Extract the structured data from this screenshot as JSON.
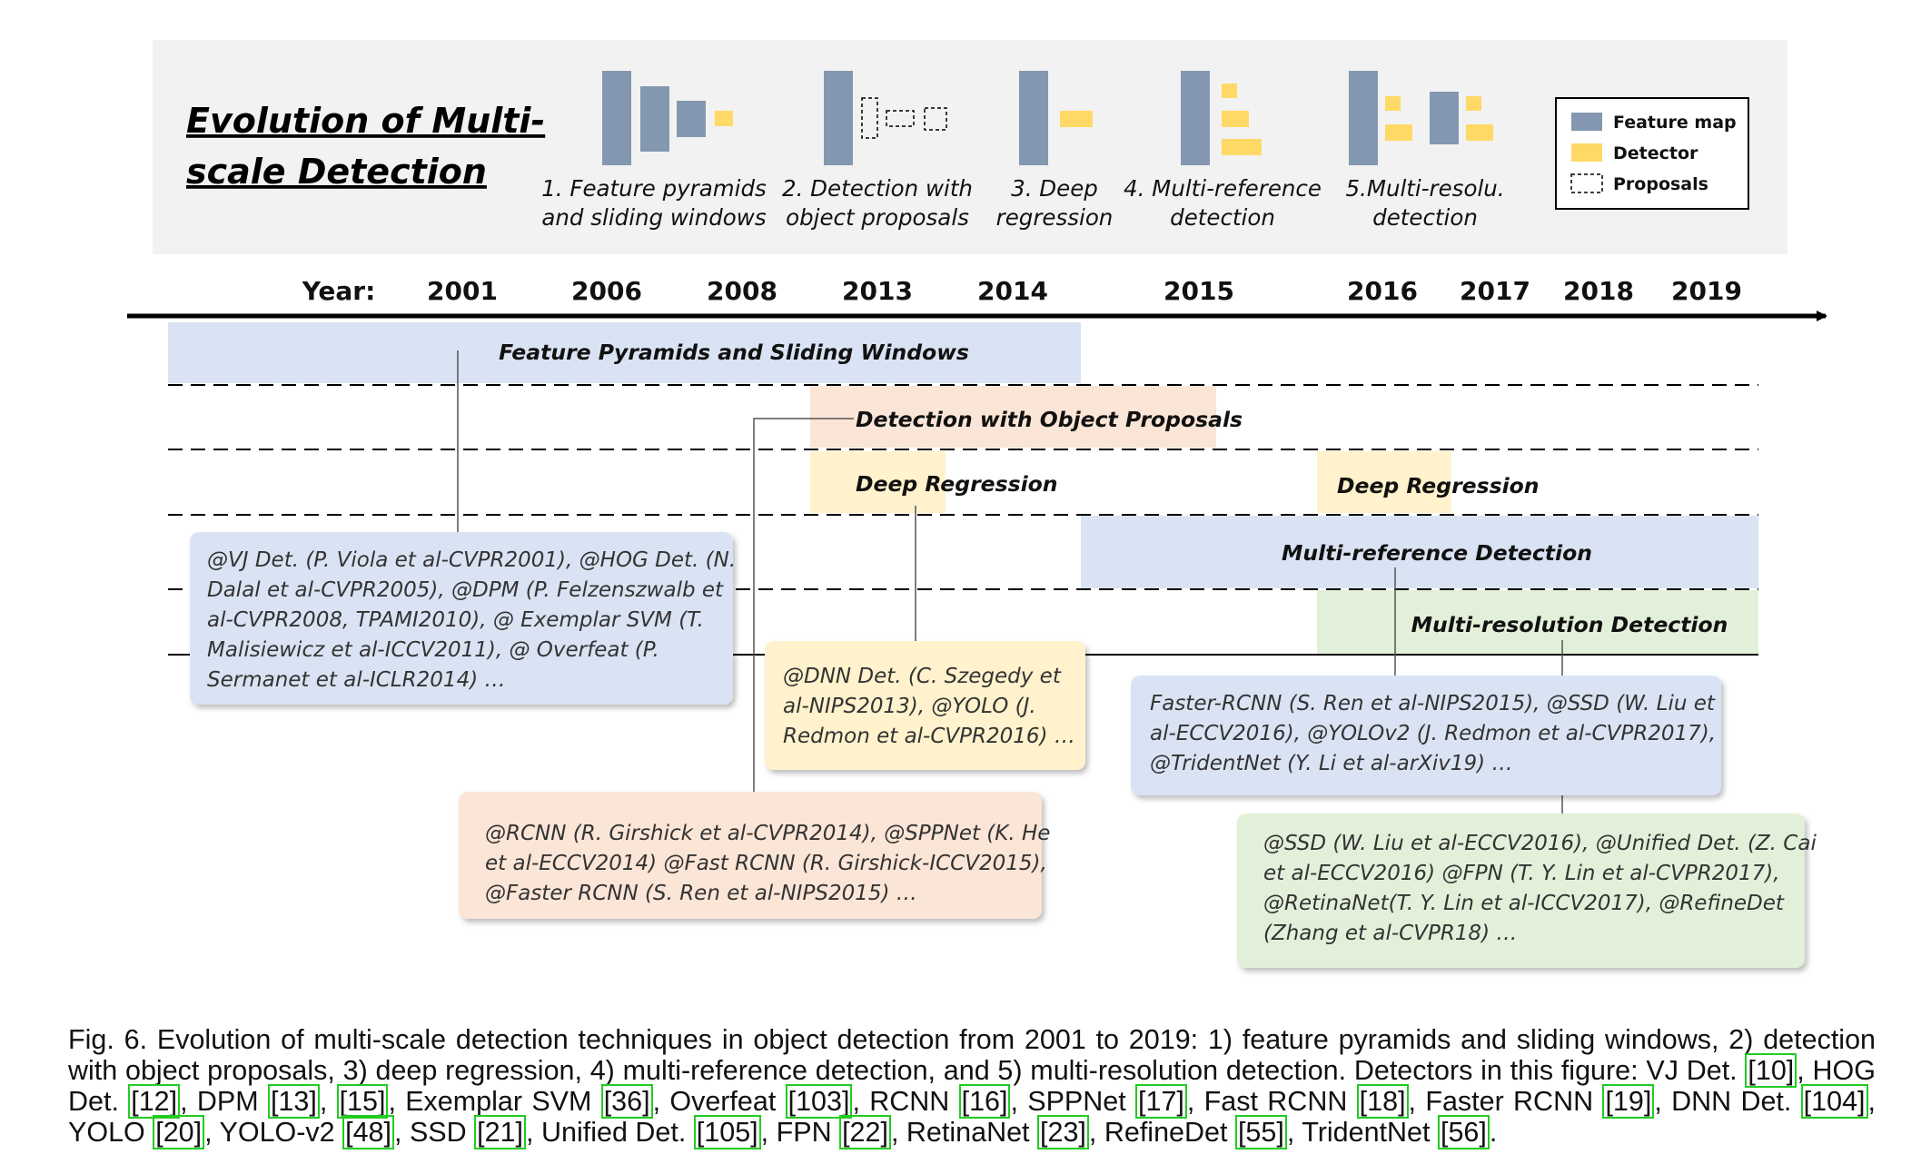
{
  "legend_panel": {
    "title_line1": "Evolution of Multi-",
    "title_line2": "scale Detection",
    "methods": [
      {
        "line1": "1. Feature pyramids",
        "line2": "and sliding windows"
      },
      {
        "line1": "2. Detection with",
        "line2": "object proposals"
      },
      {
        "line1": "3. Deep",
        "line2": "regression"
      },
      {
        "line1": "4. Multi-reference",
        "line2": "detection"
      },
      {
        "line1": "5.Multi-resolu.",
        "line2": "detection"
      }
    ],
    "key": [
      {
        "label": "Feature map",
        "color": "#8497b0"
      },
      {
        "label": "Detector",
        "color": "#ffd966"
      },
      {
        "label": "Proposals",
        "color": "#ffffff"
      }
    ]
  },
  "timeline": {
    "year_label": "Year:",
    "years": [
      "2001",
      "2006",
      "2008",
      "2013",
      "2014",
      "2015",
      "2016",
      "2017",
      "2018",
      "2019"
    ]
  },
  "bands": {
    "feature_pyramids": "Feature Pyramids and Sliding Windows",
    "object_proposals": "Detection with Object Proposals",
    "deep_regression_1": "Deep Regression",
    "deep_regression_2": "Deep Regression",
    "multi_reference": "Multi-reference Detection",
    "multi_resolution": "Multi-resolution Detection"
  },
  "notes": {
    "sliding": [
      "@VJ Det. (P. Viola et al-CVPR2001), @HOG Det. (N.",
      "Dalal et al-CVPR2005), @DPM (P. Felzenszwalb et",
      "al-CVPR2008, TPAMI2010), @ Exemplar SVM (T.",
      "Malisiewicz et al-ICCV2011), @ Overfeat (P.",
      "Sermanet et al-ICLR2014) …"
    ],
    "proposals": [
      "@RCNN (R. Girshick et al-CVPR2014), @SPPNet (K. He",
      "et al-ECCV2014) @Fast RCNN (R. Girshick-ICCV2015),",
      "@Faster RCNN (S. Ren et al-NIPS2015) …"
    ],
    "regression": [
      "@DNN Det. (C. Szegedy et",
      "al-NIPS2013), @YOLO (J.",
      "Redmon et al-CVPR2016) …"
    ],
    "reference": [
      "Faster-RCNN (S. Ren et al-NIPS2015), @SSD (W. Liu et",
      "al-ECCV2016),  @YOLOv2 (J. Redmon et al-CVPR2017),",
      "@TridentNet (Y. Li et al-arXiv19) …"
    ],
    "resolution": [
      "@SSD (W. Liu et al-ECCV2016), @Unified Det. (Z. Cai",
      "et al-ECCV2016) @FPN (T. Y. Lin et al-CVPR2017),",
      "@RetinaNet(T. Y. Lin et al-ICCV2017), @RefineDet",
      "(Zhang et al-CVPR18) …"
    ]
  },
  "colors": {
    "feature_map": "#8497b0",
    "detector": "#ffd966",
    "blue_band": "#dae3f3",
    "orange_band": "#fbe5d6",
    "yellow_band": "#fff2cc",
    "green_band": "#e2f0d9",
    "panel_bg": "#f2f2f2",
    "cite_border": "#22cc22"
  },
  "caption": {
    "prefix": "Fig. 6.  Evolution of multi-scale detection techniques in object detection from 2001 to 2019: 1) feature pyramids and sliding windows, 2) detection with object proposals, 3) deep regression, 4) multi-reference detection, and 5) multi-resolution detection. Detectors in this figure: ",
    "items": [
      {
        "name": "VJ Det. ",
        "refs": [
          "10"
        ]
      },
      {
        "name": "HOG Det. ",
        "refs": [
          "12"
        ]
      },
      {
        "name": "DPM ",
        "refs": [
          "13",
          "15"
        ]
      },
      {
        "name": "Exemplar SVM ",
        "refs": [
          "36"
        ]
      },
      {
        "name": "Overfeat ",
        "refs": [
          "103"
        ]
      },
      {
        "name": "RCNN ",
        "refs": [
          "16"
        ]
      },
      {
        "name": "SPPNet ",
        "refs": [
          "17"
        ]
      },
      {
        "name": "Fast RCNN ",
        "refs": [
          "18"
        ]
      },
      {
        "name": "Faster RCNN ",
        "refs": [
          "19"
        ]
      },
      {
        "name": "DNN Det. ",
        "refs": [
          "104"
        ]
      },
      {
        "name": "YOLO ",
        "refs": [
          "20"
        ]
      },
      {
        "name": "YOLO-v2 ",
        "refs": [
          "48"
        ]
      },
      {
        "name": "SSD ",
        "refs": [
          "21"
        ]
      },
      {
        "name": "Unified Det. ",
        "refs": [
          "105"
        ]
      },
      {
        "name": "FPN ",
        "refs": [
          "22"
        ]
      },
      {
        "name": "RetinaNet ",
        "refs": [
          "23"
        ]
      },
      {
        "name": "RefineDet ",
        "refs": [
          "55"
        ]
      },
      {
        "name": "TridentNet ",
        "refs": [
          "56"
        ]
      }
    ]
  }
}
